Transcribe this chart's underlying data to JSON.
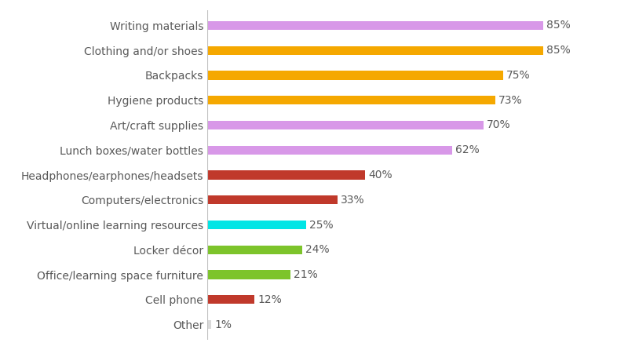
{
  "categories": [
    "Other",
    "Cell phone",
    "Office/learning space furniture",
    "Locker décor",
    "Virtual/online learning resources",
    "Computers/electronics",
    "Headphones/earphones/headsets",
    "Lunch boxes/water bottles",
    "Art/craft supplies",
    "Hygiene products",
    "Backpacks",
    "Clothing and/or shoes",
    "Writing materials"
  ],
  "values": [
    1,
    12,
    21,
    24,
    25,
    33,
    40,
    62,
    70,
    73,
    75,
    85,
    85
  ],
  "colors": [
    "#d9d9d9",
    "#c0392b",
    "#7dc42b",
    "#7dc42b",
    "#00e5e5",
    "#c0392b",
    "#c0392b",
    "#d898e8",
    "#d898e8",
    "#f5a800",
    "#f5a800",
    "#f5a800",
    "#d898e8"
  ],
  "label_color": "#595959",
  "background_color": "#ffffff",
  "bar_height": 0.35,
  "xlim": [
    0,
    97
  ],
  "fontsize_labels": 10,
  "fontsize_values": 10
}
